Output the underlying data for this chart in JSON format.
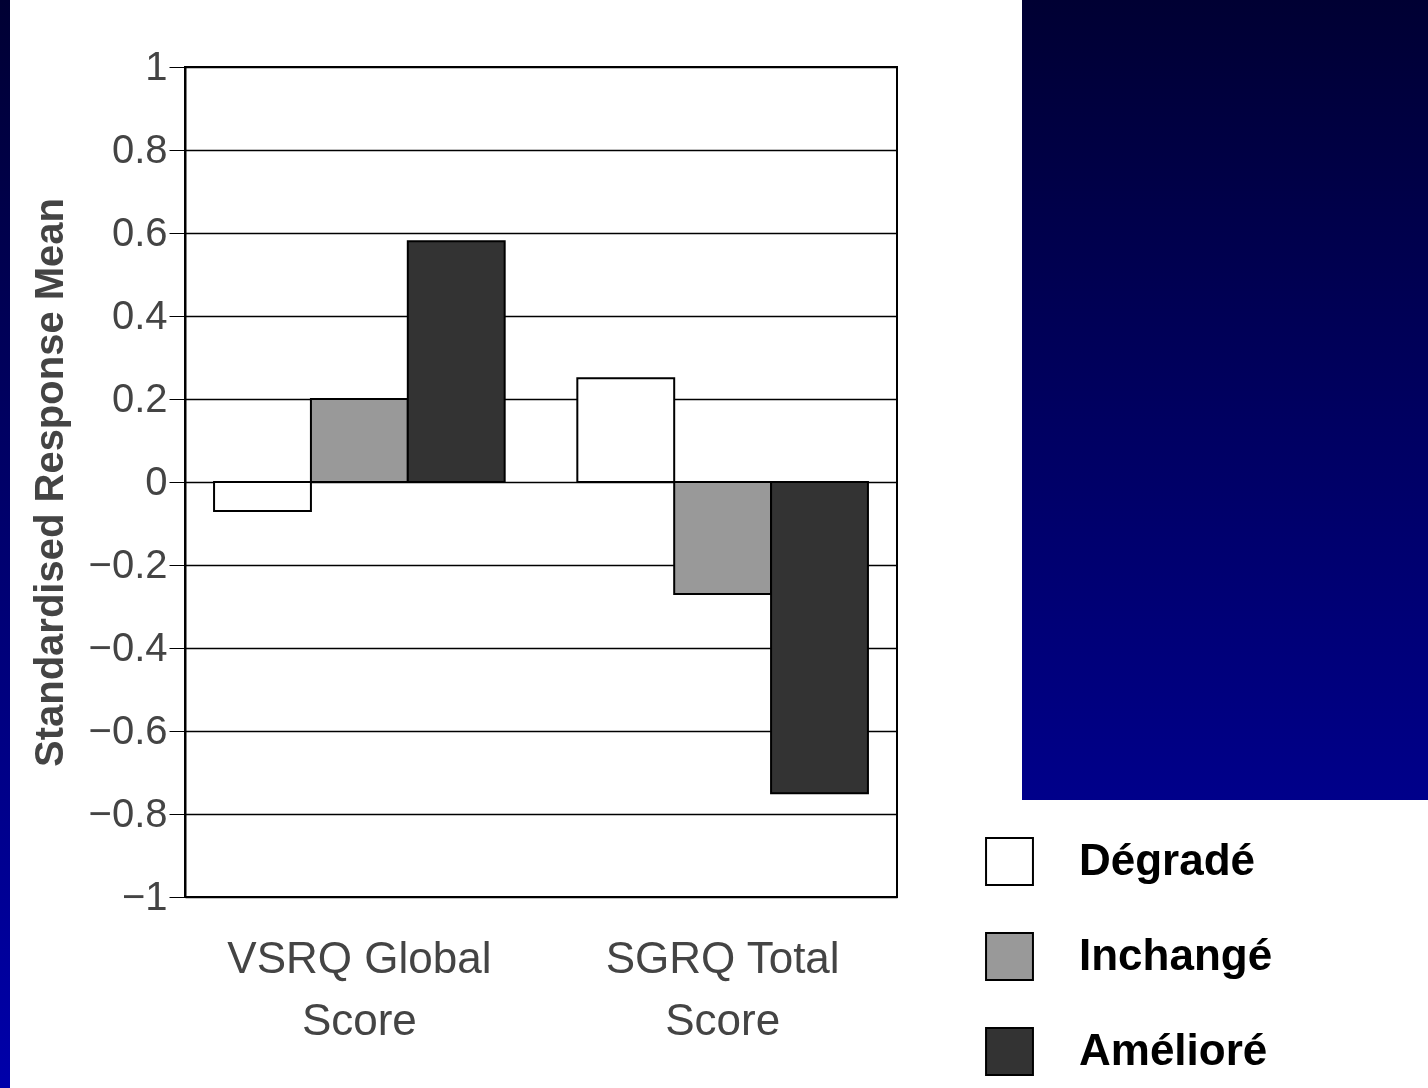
{
  "chart_data": {
    "type": "bar",
    "ylabel": "Standardised Response Mean",
    "categories": [
      "VSRQ Global Score",
      "SGRQ Total Score"
    ],
    "series": [
      {
        "name": "Dégradé",
        "color": "#ffffff",
        "values": [
          -0.07,
          0.25
        ]
      },
      {
        "name": "Inchangé",
        "color": "#999999",
        "values": [
          0.2,
          -0.27
        ]
      },
      {
        "name": "Amélioré",
        "color": "#333333",
        "values": [
          0.58,
          -0.75
        ]
      }
    ],
    "ylim": [
      -1,
      1
    ],
    "yticks": [
      -1,
      -0.8,
      -0.6,
      -0.4,
      -0.2,
      0,
      0.2,
      0.4,
      0.6,
      0.8,
      1
    ],
    "grid": "y",
    "legend": "bottom right"
  }
}
